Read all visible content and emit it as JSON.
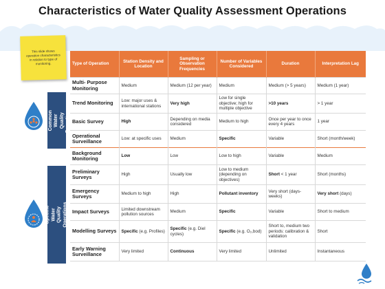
{
  "title": "Characteristics of Water Quality Assessment Operations",
  "note": "This slide shows operation characteristics in relation to type of monitoring.",
  "groups": {
    "other": "Other Common Water Quality Operations",
    "specific": "Specific Water Quality Operations"
  },
  "colors": {
    "header": "#e9793c",
    "side": "#2c4f7f",
    "note": "#f7e23c",
    "drop": "#2f7fc8"
  },
  "icons": {
    "top": "water-drop-people-icon",
    "bottom": "water-drop-person-icon",
    "corner": "water-drop-logo-icon"
  },
  "table": {
    "headers": [
      "Type of Operation",
      "Station Density and Location",
      "Sampling or Observation Frequencies",
      "Number of Variables Considered",
      "Duration",
      "Interpretation Lag"
    ],
    "rows": [
      {
        "op": "Multi- Purpose Monitoring",
        "density": "Medium",
        "freq": "Medium (12 per year)",
        "vars": "Medium",
        "dur": "Medium (> 5 years)",
        "lag": "Medium (1 year)"
      },
      {
        "op": "Trend Monitoring",
        "density": "Low: major uses & international stations",
        "freq_b": "Very high",
        "vars": "Low for single objective; high for multiple objective",
        "dur_b": ">10 years",
        "lag": "> 1 year"
      },
      {
        "op": "Basic Survey",
        "density_b": "High",
        "freq": "Depending on media considered",
        "vars": "Medium to high",
        "dur": "Once per year to once every 4 years",
        "lag": "1 year"
      },
      {
        "op": "Operational Surveillance",
        "density": "Low: at specific uses",
        "freq": "Medium",
        "vars_b": "Specific",
        "dur": "Variable",
        "lag": "Short (month/week)"
      },
      {
        "op": "Background Monitoring",
        "density_b": "Low",
        "freq": "Low",
        "vars": "Low to high",
        "dur": "Variable",
        "lag": "Medium"
      },
      {
        "op": "Preliminary Surveys",
        "density": "High",
        "freq": "Usually low",
        "vars": "Low to medium (depending on objectives)",
        "dur_b": "Short",
        "dur": "< 1 year",
        "lag": "Short (months)"
      },
      {
        "op": "Emergency Surveys",
        "density": "Medium to high",
        "freq": "High",
        "vars_b": "Pollutant inventory",
        "dur": "Very short (days-weeks)",
        "lag_b": "Very short",
        "lag": "(days)"
      },
      {
        "op": "Impact Surveys",
        "density": "Limited downstream pollution sources",
        "freq": "Medium",
        "vars_b": "Specific",
        "dur": "Variable",
        "lag": "Short to medium"
      },
      {
        "op": "Modelling Surveys",
        "density_b": "Specific",
        "density": "(e.g. Profiles)",
        "freq_b": "Specific",
        "freq": "(e.g. Diel cycles)",
        "vars_b": "Specific",
        "vars": "(e.g. O₂,bod)",
        "dur": "Short to, medium two periods: calibration & validation",
        "lag": "Short"
      },
      {
        "op": "Early Warning Surveillance",
        "density": "Very limited",
        "freq_b": "Continuous",
        "vars": "Very limited",
        "dur": "Unlimited",
        "lag": "Instantaneous"
      }
    ]
  }
}
